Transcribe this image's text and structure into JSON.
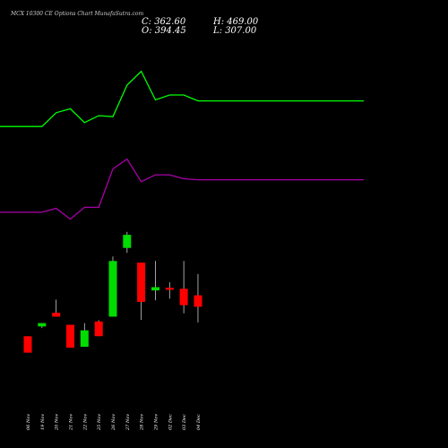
{
  "header": {
    "title": "MCX  10300  CE Options  Chart MunafaSutra.com",
    "close_label": "C: 362.60",
    "open_label": "O: 394.45",
    "high_label": "H: 469.00",
    "low_label": "L: 307.00"
  },
  "colors": {
    "background": "#000000",
    "up_candle": "#00dd00",
    "down_candle": "#ff0000",
    "green_line": "#00ff00",
    "purple_line": "#aa00aa",
    "text": "#ffffff"
  },
  "chart_data": {
    "type": "candlestick",
    "categories": [
      "06 Nov",
      "19 Nov",
      "20 Nov",
      "21 Nov",
      "22 Nov",
      "25 Nov",
      "26 Nov",
      "27 Nov",
      "28 Nov",
      "29 Nov",
      "02 Dec",
      "03 Dec",
      "04 Dec"
    ],
    "candles": [
      {
        "open": 150,
        "high": 150,
        "low": 100,
        "close": 100,
        "direction": "down"
      },
      {
        "open": 180,
        "high": 190,
        "low": 175,
        "close": 190,
        "direction": "up"
      },
      {
        "open": 222,
        "high": 262,
        "low": 210,
        "close": 210,
        "direction": "down"
      },
      {
        "open": 185,
        "high": 185,
        "low": 115,
        "close": 115,
        "direction": "down"
      },
      {
        "open": 118,
        "high": 190,
        "low": 118,
        "close": 168,
        "direction": "up"
      },
      {
        "open": 195,
        "high": 199,
        "low": 150,
        "close": 150,
        "direction": "down"
      },
      {
        "open": 210,
        "high": 394,
        "low": 210,
        "close": 380,
        "direction": "up"
      },
      {
        "open": 420,
        "high": 469,
        "low": 405,
        "close": 460,
        "direction": "up"
      },
      {
        "open": 375,
        "high": 375,
        "low": 200,
        "close": 255,
        "direction": "down"
      },
      {
        "open": 290,
        "high": 380,
        "low": 260,
        "close": 300,
        "direction": "up"
      },
      {
        "open": 298,
        "high": 315,
        "low": 265,
        "close": 292,
        "direction": "down"
      },
      {
        "open": 295,
        "high": 380,
        "low": 220,
        "close": 245,
        "direction": "down"
      },
      {
        "open": 275,
        "high": 340,
        "low": 192,
        "close": 240,
        "direction": "down"
      }
    ],
    "series": [
      {
        "color": "green",
        "values": [
          258,
          258,
          272,
          276,
          262,
          269,
          268,
          300,
          314,
          285,
          290,
          290,
          284
        ]
      },
      {
        "color": "purple",
        "values": [
          171,
          171,
          175,
          164,
          176,
          176,
          215,
          225,
          202,
          209,
          209,
          205,
          204
        ]
      }
    ]
  }
}
